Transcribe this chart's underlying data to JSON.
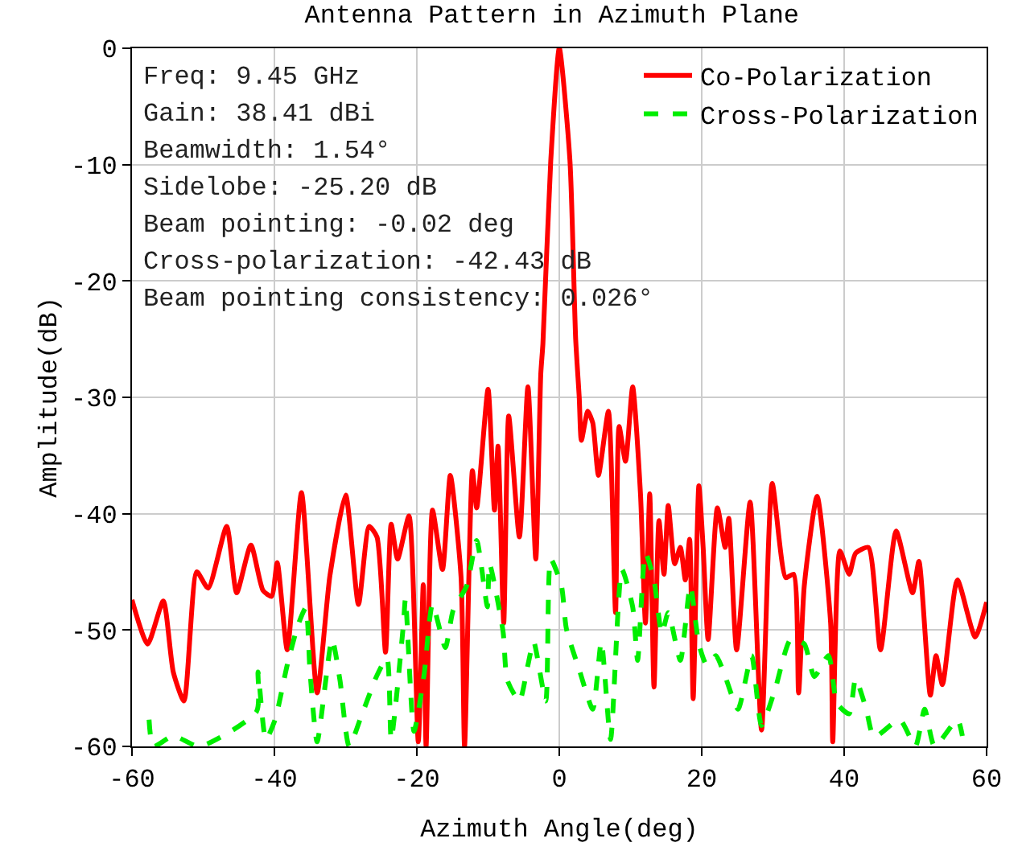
{
  "chart_data": {
    "type": "line",
    "title": "Antenna Pattern in Azimuth Plane",
    "xlabel": "Azimuth Angle(deg)",
    "ylabel": "Amplitude(dB)",
    "xlim": [
      -60,
      60
    ],
    "xticks": [
      -60,
      -40,
      -20,
      0,
      20,
      40,
      60
    ],
    "ylim": [
      -60,
      0
    ],
    "yticks": [
      -60,
      -50,
      -40,
      -30,
      -20,
      -10,
      0
    ],
    "grid": true,
    "legend": "top right",
    "marker": "none",
    "annotations": [
      "Freq: 9.45 GHz",
      "Gain: 38.41 dBi",
      "Beamwidth: 1.54°",
      "Sidelobe: -25.20 dB",
      "Beam pointing: -0.02 deg",
      "Cross-polarization: -42.43 dB",
      "Beam pointing consistency: 0.026°"
    ],
    "series": [
      {
        "name": "Co-Polarization",
        "color": "#ff0000",
        "line_style": "solid",
        "x": [
          -60,
          -57.8,
          -55.6,
          -54.2,
          -52.7,
          -50.9,
          -49.3,
          -46.7,
          -45.3,
          -43.3,
          -41.6,
          -40.4,
          -39.6,
          -38.2,
          -36.2,
          -34,
          -32.2,
          -30,
          -28.2,
          -26.7,
          -25.6,
          -24.4,
          -23.6,
          -22.7,
          -21.1,
          -19.8,
          -19.1,
          -18.7,
          -17.8,
          -16.4,
          -15.3,
          -13.8,
          -13.3,
          -12.2,
          -11.6,
          -10,
          -9.1,
          -8.6,
          -7.8,
          -7.1,
          -5.6,
          -4.4,
          -3.3,
          -2.6,
          -2.3,
          -1.2,
          0,
          1.5,
          2.3,
          2.8,
          3.1,
          4,
          4.7,
          5.5,
          6.9,
          7.9,
          8.4,
          9.3,
          10.3,
          11.4,
          12.1,
          12.7,
          13.3,
          14,
          14.7,
          15.3,
          16.2,
          17,
          17.7,
          18.3,
          18.8,
          19.6,
          20.2,
          20.9,
          22.2,
          23.3,
          23.8,
          24.9,
          26.8,
          28.4,
          29.9,
          31.8,
          32.9,
          33.6,
          34.4,
          36.2,
          38.1,
          38.4,
          39.4,
          40.7,
          41.6,
          43.4,
          45.1,
          47.3,
          49.6,
          50.5,
          52.1,
          52.9,
          53.8,
          55.9,
          58.4,
          60
        ],
        "values": [
          -47.4,
          -51.2,
          -47.5,
          -53.6,
          -56.1,
          -45,
          -46.4,
          -41.1,
          -46.8,
          -42.7,
          -46.6,
          -47.1,
          -44.2,
          -51.7,
          -38.2,
          -55.4,
          -45.3,
          -38.4,
          -47.8,
          -41.1,
          -42,
          -51.9,
          -40.9,
          -43.9,
          -40.2,
          -59.6,
          -46.1,
          -60,
          -39.7,
          -44.8,
          -36.7,
          -45.4,
          -60,
          -36.3,
          -39.5,
          -29.3,
          -39.7,
          -34.2,
          -49.4,
          -31.6,
          -42,
          -29.1,
          -43.9,
          -28,
          -25.4,
          -9.7,
          0,
          -9.7,
          -25,
          -30,
          -33.7,
          -31.2,
          -32.2,
          -36.7,
          -31.2,
          -48.5,
          -32.5,
          -35.5,
          -29.1,
          -38.3,
          -49.4,
          -38.3,
          -54.9,
          -40.6,
          -45.2,
          -39.3,
          -44.3,
          -42.9,
          -45.7,
          -42.2,
          -55.9,
          -37.6,
          -42.9,
          -50.8,
          -39.5,
          -42.9,
          -40.4,
          -51.7,
          -39,
          -58.6,
          -37.4,
          -45.5,
          -45.2,
          -55.4,
          -46.2,
          -38.5,
          -49.4,
          -59.6,
          -43.2,
          -45.2,
          -43.4,
          -42.9,
          -51.7,
          -41.5,
          -46.8,
          -44.1,
          -55.6,
          -52.2,
          -54.7,
          -45.7,
          -50.6,
          -47.6
        ]
      },
      {
        "name": "Cross-Polarization",
        "color": "#00ee00",
        "line_style": "dashed",
        "x": [
          -57.6,
          -57,
          -54.2,
          -50.5,
          -42.5,
          -42.3,
          -41.2,
          -39.9,
          -38.2,
          -36.7,
          -35.6,
          -35,
          -34,
          -31.9,
          -30.8,
          -29.5,
          -27.8,
          -25.6,
          -24.2,
          -23.6,
          -21.9,
          -21.6,
          -20.4,
          -19,
          -17.8,
          -16,
          -14.9,
          -13,
          -11.6,
          -10.1,
          -9.8,
          -7.9,
          -7.3,
          -5.6,
          -4.4,
          -3.6,
          -1.9,
          -1.2,
          0.3,
          1,
          2.9,
          4.7,
          5.9,
          7.2,
          8.8,
          10.3,
          11,
          12.1,
          13.3,
          14.4,
          15.3,
          17,
          18.4,
          19.6,
          20.7,
          22,
          23.3,
          25.1,
          27,
          28.4,
          30.3,
          32.5,
          34.4,
          35.8,
          37.8,
          39,
          40.7,
          41.6,
          43.1,
          44.2,
          47.8,
          50,
          51.3,
          52.7,
          55.9,
          56.6
        ],
        "values": [
          -57.7,
          -60,
          -59.1,
          -60,
          -57,
          -53.6,
          -59.4,
          -57.7,
          -53,
          -49.6,
          -48.1,
          -53.6,
          -59.6,
          -50.8,
          -54.3,
          -60,
          -57.4,
          -53.9,
          -52.4,
          -59.4,
          -49.6,
          -47.3,
          -58.7,
          -53.9,
          -47.8,
          -51.5,
          -48.3,
          -46.2,
          -42.3,
          -48,
          -44.3,
          -50.1,
          -54.3,
          -56.1,
          -53,
          -51,
          -56.1,
          -43.9,
          -46.2,
          -49.9,
          -53.6,
          -56.8,
          -51,
          -59.4,
          -44.8,
          -48,
          -52.6,
          -43.4,
          -45.7,
          -50.3,
          -48.5,
          -52.6,
          -46.2,
          -51.2,
          -53,
          -52.2,
          -54,
          -56.8,
          -52.2,
          -58.2,
          -55.1,
          -50.8,
          -51.2,
          -54,
          -52.2,
          -56.3,
          -57.2,
          -54.2,
          -56.8,
          -59.2,
          -57.7,
          -60,
          -56.8,
          -60,
          -57.7,
          -59.1
        ]
      }
    ]
  }
}
